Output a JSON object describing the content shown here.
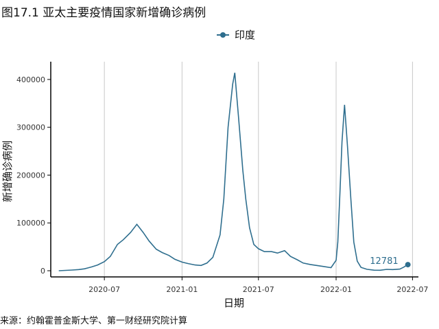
{
  "title": "图17.1 亚太主要疫情国家新增确诊病例",
  "source": "来源：约翰霍普金斯大学、第一财经研究院计算",
  "chart_data": {
    "type": "line",
    "xlabel": "日期",
    "ylabel": "新增确诊病例",
    "x_ticks": [
      "2020-07",
      "2021-01",
      "2021-07",
      "2022-01",
      "2022-07"
    ],
    "y_ticks": [
      "0",
      "100000",
      "200000",
      "300000",
      "400000"
    ],
    "ylim": [
      0,
      430000
    ],
    "xlim": [
      "2020-02-25",
      "2022-07-15"
    ],
    "legend_position": "top",
    "grid": "vertical major lines",
    "series": [
      {
        "name": "印度",
        "color": "#2e6e8e",
        "points": [
          [
            "2020-03-15",
            0
          ],
          [
            "2020-04-15",
            1500
          ],
          [
            "2020-05-01",
            2500
          ],
          [
            "2020-05-15",
            4000
          ],
          [
            "2020-06-01",
            8000
          ],
          [
            "2020-06-15",
            12000
          ],
          [
            "2020-07-01",
            19000
          ],
          [
            "2020-07-15",
            30000
          ],
          [
            "2020-08-01",
            55000
          ],
          [
            "2020-08-15",
            65000
          ],
          [
            "2020-09-01",
            80000
          ],
          [
            "2020-09-16",
            97000
          ],
          [
            "2020-10-01",
            80000
          ],
          [
            "2020-10-15",
            62000
          ],
          [
            "2020-11-01",
            45000
          ],
          [
            "2020-11-15",
            38000
          ],
          [
            "2020-12-01",
            32000
          ],
          [
            "2020-12-15",
            24000
          ],
          [
            "2021-01-01",
            18000
          ],
          [
            "2021-01-15",
            15000
          ],
          [
            "2021-02-01",
            12000
          ],
          [
            "2021-02-15",
            11000
          ],
          [
            "2021-03-01",
            16000
          ],
          [
            "2021-03-15",
            28000
          ],
          [
            "2021-04-01",
            75000
          ],
          [
            "2021-04-10",
            150000
          ],
          [
            "2021-04-20",
            300000
          ],
          [
            "2021-05-01",
            390000
          ],
          [
            "2021-05-06",
            414000
          ],
          [
            "2021-05-15",
            320000
          ],
          [
            "2021-05-25",
            210000
          ],
          [
            "2021-06-01",
            150000
          ],
          [
            "2021-06-10",
            90000
          ],
          [
            "2021-06-20",
            55000
          ],
          [
            "2021-07-01",
            46000
          ],
          [
            "2021-07-15",
            40000
          ],
          [
            "2021-08-01",
            40000
          ],
          [
            "2021-08-15",
            37000
          ],
          [
            "2021-09-01",
            42000
          ],
          [
            "2021-09-15",
            30000
          ],
          [
            "2021-10-01",
            23000
          ],
          [
            "2021-10-15",
            16000
          ],
          [
            "2021-11-01",
            13000
          ],
          [
            "2021-12-01",
            9000
          ],
          [
            "2021-12-20",
            6500
          ],
          [
            "2022-01-01",
            22000
          ],
          [
            "2022-01-05",
            60000
          ],
          [
            "2022-01-10",
            160000
          ],
          [
            "2022-01-15",
            270000
          ],
          [
            "2022-01-21",
            347000
          ],
          [
            "2022-01-28",
            260000
          ],
          [
            "2022-02-05",
            150000
          ],
          [
            "2022-02-12",
            60000
          ],
          [
            "2022-02-20",
            20000
          ],
          [
            "2022-03-01",
            7000
          ],
          [
            "2022-03-15",
            3000
          ],
          [
            "2022-04-01",
            1200
          ],
          [
            "2022-04-15",
            1000
          ],
          [
            "2022-05-01",
            2800
          ],
          [
            "2022-05-15",
            2500
          ],
          [
            "2022-06-01",
            3500
          ],
          [
            "2022-06-10",
            7500
          ],
          [
            "2022-06-20",
            12781
          ]
        ],
        "end_label": "12781"
      }
    ]
  }
}
